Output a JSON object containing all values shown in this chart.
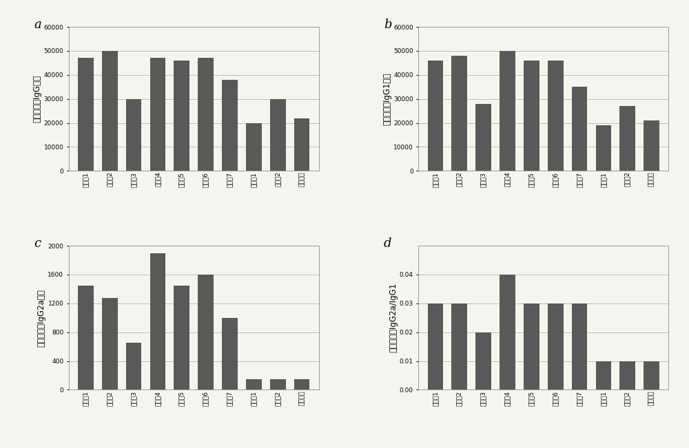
{
  "categories": [
    "实验例1",
    "实验例2",
    "实验例3",
    "实验例4",
    "实验例5",
    "实验例6",
    "实验例7",
    "对比例1",
    "对比例2",
    "阳性对照"
  ],
  "chart_a": {
    "label": "a",
    "ylabel": "多糖特异性IgG滴度",
    "values": [
      47000,
      50000,
      30000,
      47000,
      46000,
      47000,
      38000,
      20000,
      30000,
      22000
    ],
    "ylim": [
      0,
      60000
    ],
    "yticks": [
      0,
      10000,
      20000,
      30000,
      40000,
      50000,
      60000
    ]
  },
  "chart_b": {
    "label": "b",
    "ylabel": "多糖特异性IgG1滴度",
    "values": [
      46000,
      48000,
      28000,
      50000,
      46000,
      46000,
      35000,
      19000,
      27000,
      21000
    ],
    "ylim": [
      0,
      60000
    ],
    "yticks": [
      0,
      10000,
      20000,
      30000,
      40000,
      50000,
      60000
    ]
  },
  "chart_c": {
    "label": "c",
    "ylabel": "多糖特异性IgG2a滴度",
    "values": [
      1450,
      1270,
      650,
      1900,
      1450,
      1600,
      1000,
      150,
      150,
      150
    ],
    "ylim": [
      0,
      2000
    ],
    "yticks": [
      0,
      400,
      800,
      1200,
      1600,
      2000
    ]
  },
  "chart_d": {
    "label": "d",
    "ylabel": "多糖特异性IgG2a/IgG1",
    "values": [
      0.03,
      0.03,
      0.02,
      0.04,
      0.03,
      0.03,
      0.03,
      0.01,
      0.01,
      0.01
    ],
    "ylim": [
      0,
      0.05
    ],
    "yticks": [
      0,
      0.01,
      0.02,
      0.03,
      0.04
    ]
  },
  "bar_color": "#595959",
  "background_color": "#f5f5f0",
  "grid_color": "#bbbbbb",
  "tick_fontsize": 6.5,
  "ylabel_fontsize": 8.5,
  "panel_label_fontsize": 13
}
